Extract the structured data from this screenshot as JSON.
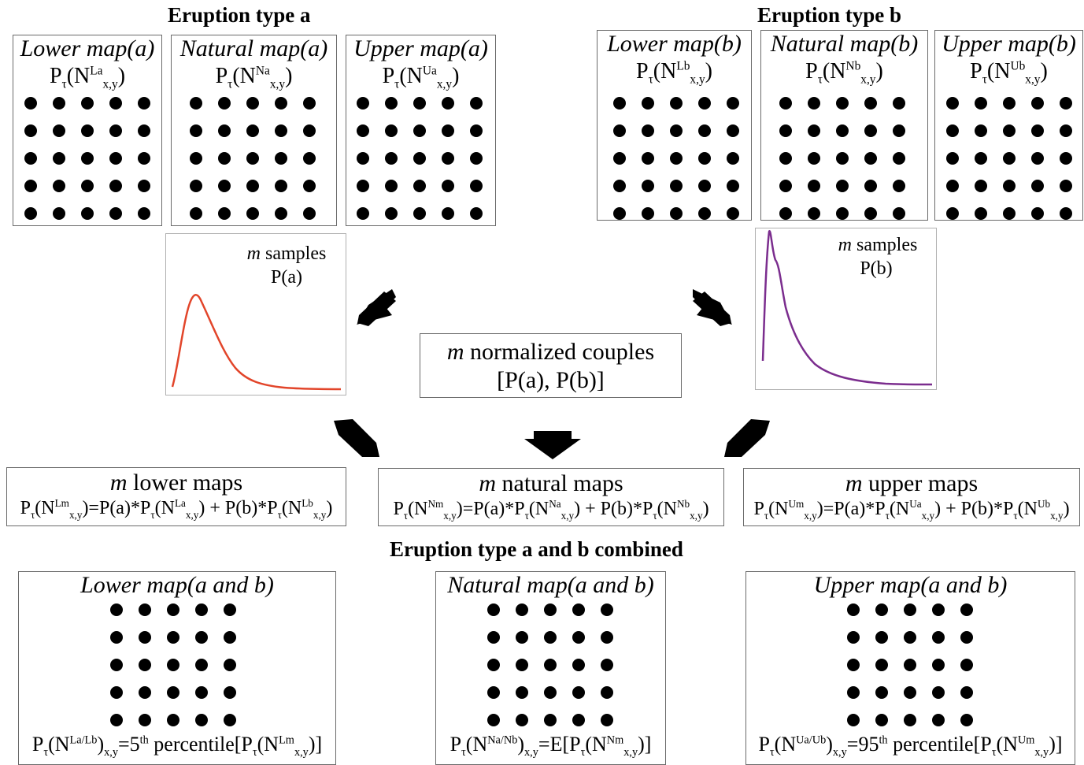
{
  "titles": {
    "type_a": "Eruption type a",
    "type_b": "Eruption type b",
    "combined": "Eruption type a and b combined"
  },
  "maps_a": [
    {
      "title": "Lower map(a)",
      "sup": "La"
    },
    {
      "title": "Natural map(a)",
      "sup": "Na"
    },
    {
      "title": "Upper map(a)",
      "sup": "Ua"
    }
  ],
  "maps_b": [
    {
      "title": "Lower map(b)",
      "sup": "Lb"
    },
    {
      "title": "Natural map(b)",
      "sup": "Nb"
    },
    {
      "title": "Upper map(b)",
      "sup": "Ub"
    }
  ],
  "eq_parts": {
    "P": "P",
    "tau": "τ",
    "open": "(N",
    "sub": "x,y",
    "close": ")"
  },
  "samples": {
    "a": {
      "m": "m",
      "samples": " samples",
      "p": "P(a)"
    },
    "b": {
      "m": "m",
      "samples": " samples",
      "p": "P(b)"
    }
  },
  "curve_colors": {
    "a": "#e2452a",
    "b": "#7b2d8e"
  },
  "couples": {
    "m": "m",
    "line1": " normalized couples",
    "line2": "[P(a), P(b)]"
  },
  "combo_maps": [
    {
      "m": "m",
      "title": " lower maps",
      "sup": "Lm",
      "s1": "La",
      "s2": "Lb"
    },
    {
      "m": "m",
      "title": " natural maps",
      "sup": "Nm",
      "s1": "Na",
      "s2": "Nb"
    },
    {
      "m": "m",
      "title": " upper maps",
      "sup": "Um",
      "s1": "Ua",
      "s2": "Ub"
    }
  ],
  "combo_eq": {
    "eq_mid": ")=P(a)*",
    "plus": ") + P(b)*",
    "end": ")"
  },
  "final_maps": [
    {
      "title": "Lower map(a and b)",
      "sup": "La/Lb",
      "mid": "=5",
      "ord": "th",
      "rest": " percentile[P",
      "inner_sup": "Lm",
      "end": ")]"
    },
    {
      "title": "Natural map(a and b)",
      "sup": "Na/Nb",
      "mid": "=E[P",
      "ord": "",
      "rest": "",
      "inner_sup": "Nm",
      "end": ")]"
    },
    {
      "title": "Upper map(a and b)",
      "sup": "Ua/Ub",
      "mid": "=95",
      "ord": "th",
      "rest": " percentile[P",
      "inner_sup": "Um",
      "end": ")]"
    }
  ]
}
